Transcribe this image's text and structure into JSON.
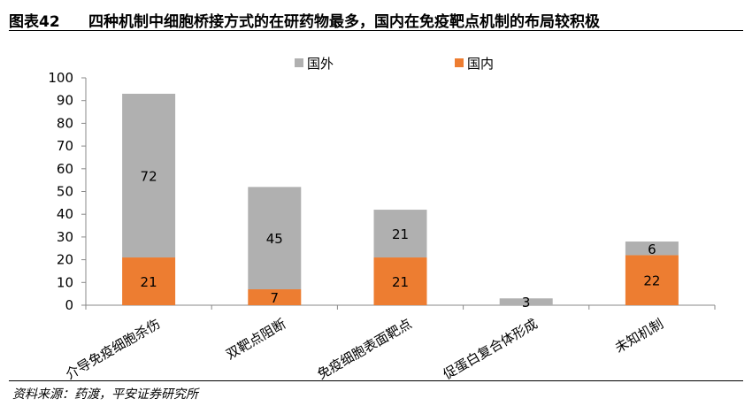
{
  "header": {
    "label": "图表42",
    "title": "四种机制中细胞桥接方式的在研药物最多，国内在免疫靶点机制的布局较积极"
  },
  "source": "资料来源：药渡，平安证券研究所",
  "chart_data": {
    "type": "bar",
    "stacked": true,
    "categories": [
      "介导免疫细胞杀伤",
      "双靶点阻断",
      "免疫细胞表面靶点",
      "促蛋白复合体形成",
      "未知机制"
    ],
    "series": [
      {
        "name": "国内",
        "values": [
          21,
          7,
          21,
          0,
          22
        ],
        "color": "#ED7D31"
      },
      {
        "name": "国外",
        "values": [
          72,
          45,
          21,
          3,
          6
        ],
        "color": "#B0B0B0"
      }
    ],
    "ylim": [
      0,
      100
    ],
    "yticks": [
      0,
      10,
      20,
      30,
      40,
      50,
      60,
      70,
      80,
      90,
      100
    ],
    "grid": false,
    "legend_position": "top",
    "legend_order": [
      "国外",
      "国内"
    ]
  }
}
